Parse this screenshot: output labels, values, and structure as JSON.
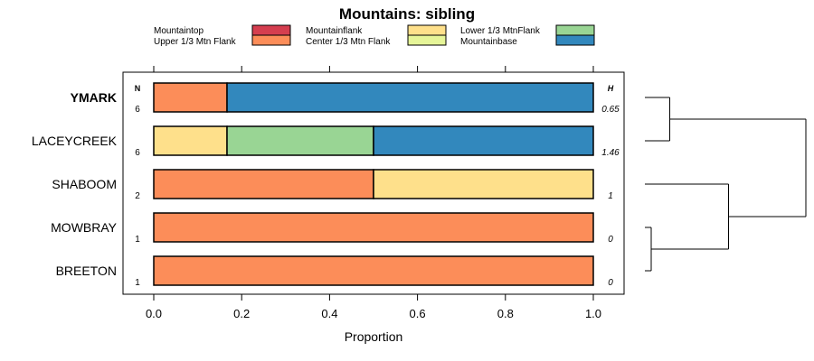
{
  "chart_data": {
    "type": "bar",
    "stacked": true,
    "orientation": "horizontal",
    "title": "Mountains: sibling",
    "xlabel": "Proportion",
    "xlim": [
      0,
      1
    ],
    "xticks": [
      0.0,
      0.2,
      0.4,
      0.6,
      0.8,
      1.0
    ],
    "xtick_labels": [
      "0.0",
      "0.2",
      "0.4",
      "0.6",
      "0.8",
      "1.0"
    ],
    "count_header": "N",
    "diversity_header": "H",
    "legend": [
      {
        "name": "Mountaintop",
        "color": "#d53e4f"
      },
      {
        "name": "Upper 1/3 Mtn Flank",
        "color": "#fc8d59"
      },
      {
        "name": "Mountainflank",
        "color": "#fee08b"
      },
      {
        "name": "Center 1/3 Mtn Flank",
        "color": "#e6f598"
      },
      {
        "name": "Lower 1/3 MtnFlank",
        "color": "#99d594"
      },
      {
        "name": "Mountainbase",
        "color": "#3288bd"
      }
    ],
    "categories": [
      {
        "label": "YMARK",
        "bold": true,
        "n": "6",
        "h": "0.65",
        "values": [
          0,
          0.1667,
          0,
          0,
          0,
          0.8333
        ]
      },
      {
        "label": "LACEYCREEK",
        "bold": false,
        "n": "6",
        "h": "1.46",
        "values": [
          0,
          0,
          0.1667,
          0,
          0.3333,
          0.5
        ]
      },
      {
        "label": "SHABOOM",
        "bold": false,
        "n": "2",
        "h": "1",
        "values": [
          0,
          0.5,
          0.5,
          0,
          0,
          0
        ]
      },
      {
        "label": "MOWBRAY",
        "bold": false,
        "n": "1",
        "h": "0",
        "values": [
          0,
          1,
          0,
          0,
          0,
          0
        ]
      },
      {
        "label": "BREETON",
        "bold": false,
        "n": "1",
        "h": "0",
        "values": [
          0,
          1,
          0,
          0,
          0,
          0
        ]
      }
    ],
    "dendrogram": {
      "merges": [
        {
          "left": "MOWBRAY",
          "right": "BREETON",
          "height": 0.0
        },
        {
          "left": "YMARK",
          "right": "LACEYCREEK",
          "height": 0.12
        },
        {
          "left": "SHABOOM",
          "right": "MOWBRAY+BREETON",
          "height": 0.5
        },
        {
          "left": "YMARK+LACEYCREEK",
          "right": "SHABOOM+MOWBRAY+BREETON",
          "height": 1.0
        }
      ]
    }
  }
}
